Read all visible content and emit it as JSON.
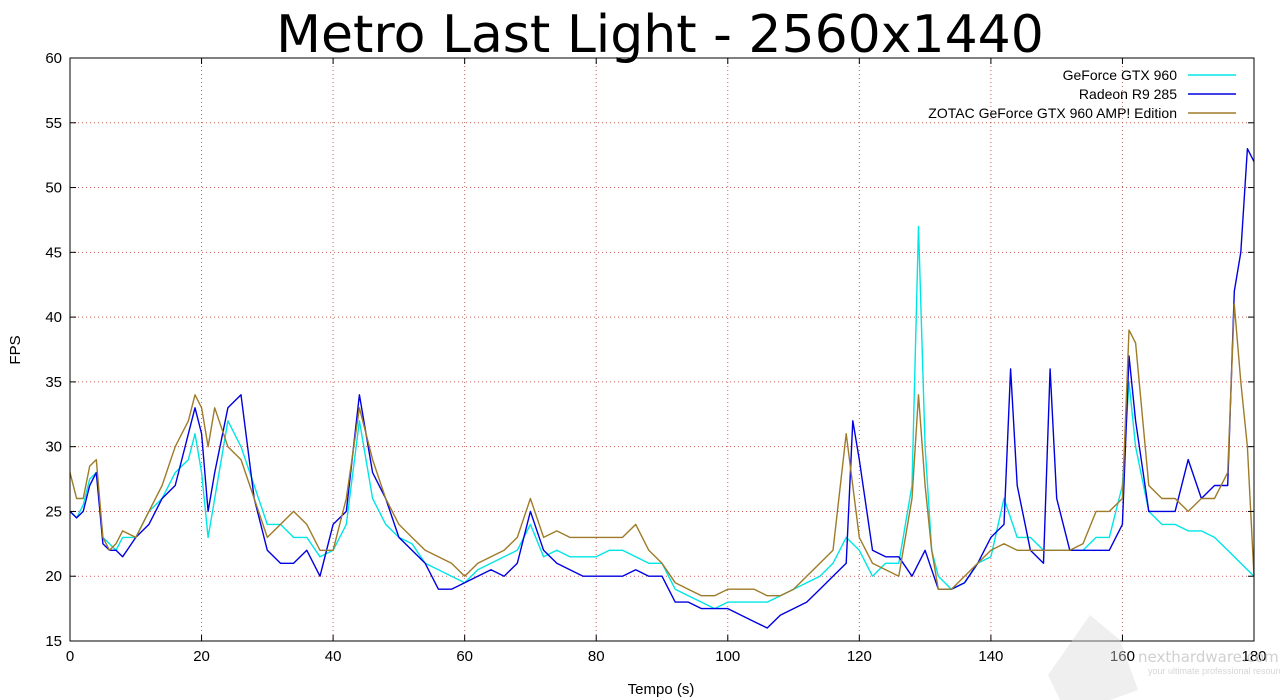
{
  "chart_data": {
    "type": "line",
    "title": "Metro Last Light - 2560x1440",
    "xlabel": "Tempo (s)",
    "ylabel": "FPS",
    "xlim": [
      0,
      180
    ],
    "ylim": [
      15,
      60
    ],
    "xticks": [
      "0",
      "20",
      "40",
      "60",
      "80",
      "100",
      "120",
      "140",
      "160",
      "180"
    ],
    "yticks": [
      "15",
      "20",
      "25",
      "30",
      "35",
      "40",
      "45",
      "50",
      "55",
      "60"
    ],
    "grid": true,
    "legend_position": "top-right",
    "series": [
      {
        "name": "GeForce GTX 960",
        "color": "#00e5e5",
        "points": [
          [
            0,
            25
          ],
          [
            1,
            24.5
          ],
          [
            2,
            25.5
          ],
          [
            3,
            27.5
          ],
          [
            4,
            28
          ],
          [
            5,
            23
          ],
          [
            6,
            22.5
          ],
          [
            7,
            22
          ],
          [
            8,
            23
          ],
          [
            10,
            23
          ],
          [
            12,
            25
          ],
          [
            14,
            26
          ],
          [
            16,
            28
          ],
          [
            18,
            29
          ],
          [
            19,
            31
          ],
          [
            20,
            28
          ],
          [
            21,
            23
          ],
          [
            22,
            26
          ],
          [
            24,
            32
          ],
          [
            26,
            30
          ],
          [
            28,
            27
          ],
          [
            30,
            24
          ],
          [
            32,
            24
          ],
          [
            34,
            23
          ],
          [
            36,
            23
          ],
          [
            38,
            21.5
          ],
          [
            40,
            22
          ],
          [
            42,
            24
          ],
          [
            44,
            32
          ],
          [
            46,
            26
          ],
          [
            48,
            24
          ],
          [
            50,
            23
          ],
          [
            52,
            22.5
          ],
          [
            54,
            21
          ],
          [
            56,
            20.5
          ],
          [
            58,
            20
          ],
          [
            60,
            19.5
          ],
          [
            62,
            20.5
          ],
          [
            64,
            21
          ],
          [
            66,
            21.5
          ],
          [
            68,
            22
          ],
          [
            70,
            24
          ],
          [
            72,
            21.5
          ],
          [
            74,
            22
          ],
          [
            76,
            21.5
          ],
          [
            78,
            21.5
          ],
          [
            80,
            21.5
          ],
          [
            82,
            22
          ],
          [
            84,
            22
          ],
          [
            86,
            21.5
          ],
          [
            88,
            21
          ],
          [
            90,
            21
          ],
          [
            92,
            19
          ],
          [
            94,
            18.5
          ],
          [
            96,
            18
          ],
          [
            98,
            17.5
          ],
          [
            100,
            18
          ],
          [
            102,
            18
          ],
          [
            104,
            18
          ],
          [
            106,
            18
          ],
          [
            108,
            18.5
          ],
          [
            110,
            19
          ],
          [
            112,
            19.5
          ],
          [
            114,
            20
          ],
          [
            116,
            21
          ],
          [
            118,
            23
          ],
          [
            120,
            22
          ],
          [
            122,
            20
          ],
          [
            124,
            21
          ],
          [
            126,
            21
          ],
          [
            128,
            27
          ],
          [
            129,
            47
          ],
          [
            130,
            30
          ],
          [
            131,
            22
          ],
          [
            132,
            20
          ],
          [
            134,
            19
          ],
          [
            136,
            19.5
          ],
          [
            138,
            21
          ],
          [
            140,
            21.5
          ],
          [
            142,
            26
          ],
          [
            144,
            23
          ],
          [
            146,
            23
          ],
          [
            148,
            22
          ],
          [
            150,
            22
          ],
          [
            152,
            22
          ],
          [
            154,
            22
          ],
          [
            156,
            23
          ],
          [
            158,
            23
          ],
          [
            160,
            27
          ],
          [
            161,
            35
          ],
          [
            162,
            30
          ],
          [
            164,
            25
          ],
          [
            166,
            24
          ],
          [
            168,
            24
          ],
          [
            170,
            23.5
          ],
          [
            172,
            23.5
          ],
          [
            174,
            23
          ],
          [
            176,
            22
          ],
          [
            178,
            21
          ],
          [
            180,
            20
          ]
        ]
      },
      {
        "name": "Radeon R9 285",
        "color": "#0000e0",
        "points": [
          [
            0,
            25
          ],
          [
            1,
            24.5
          ],
          [
            2,
            25
          ],
          [
            3,
            27
          ],
          [
            4,
            28
          ],
          [
            5,
            22.5
          ],
          [
            6,
            22
          ],
          [
            7,
            22
          ],
          [
            8,
            21.5
          ],
          [
            10,
            23
          ],
          [
            12,
            24
          ],
          [
            14,
            26
          ],
          [
            16,
            27
          ],
          [
            18,
            31
          ],
          [
            19,
            33
          ],
          [
            20,
            31
          ],
          [
            21,
            25
          ],
          [
            22,
            28
          ],
          [
            24,
            33
          ],
          [
            26,
            34
          ],
          [
            28,
            26
          ],
          [
            30,
            22
          ],
          [
            32,
            21
          ],
          [
            34,
            21
          ],
          [
            36,
            22
          ],
          [
            38,
            20
          ],
          [
            40,
            24
          ],
          [
            42,
            25
          ],
          [
            44,
            34
          ],
          [
            46,
            28
          ],
          [
            48,
            26
          ],
          [
            50,
            23
          ],
          [
            52,
            22
          ],
          [
            54,
            21
          ],
          [
            56,
            19
          ],
          [
            58,
            19
          ],
          [
            60,
            19.5
          ],
          [
            62,
            20
          ],
          [
            64,
            20.5
          ],
          [
            66,
            20
          ],
          [
            68,
            21
          ],
          [
            70,
            25
          ],
          [
            72,
            22
          ],
          [
            74,
            21
          ],
          [
            76,
            20.5
          ],
          [
            78,
            20
          ],
          [
            80,
            20
          ],
          [
            82,
            20
          ],
          [
            84,
            20
          ],
          [
            86,
            20.5
          ],
          [
            88,
            20
          ],
          [
            90,
            20
          ],
          [
            92,
            18
          ],
          [
            94,
            18
          ],
          [
            96,
            17.5
          ],
          [
            98,
            17.5
          ],
          [
            100,
            17.5
          ],
          [
            102,
            17
          ],
          [
            104,
            16.5
          ],
          [
            106,
            16
          ],
          [
            108,
            17
          ],
          [
            110,
            17.5
          ],
          [
            112,
            18
          ],
          [
            114,
            19
          ],
          [
            116,
            20
          ],
          [
            118,
            21
          ],
          [
            119,
            32
          ],
          [
            120,
            29
          ],
          [
            122,
            22
          ],
          [
            124,
            21.5
          ],
          [
            126,
            21.5
          ],
          [
            128,
            20
          ],
          [
            130,
            22
          ],
          [
            132,
            19
          ],
          [
            134,
            19
          ],
          [
            136,
            19.5
          ],
          [
            138,
            21
          ],
          [
            140,
            23
          ],
          [
            142,
            24
          ],
          [
            143,
            36
          ],
          [
            144,
            27
          ],
          [
            146,
            22
          ],
          [
            148,
            21
          ],
          [
            149,
            36
          ],
          [
            150,
            26
          ],
          [
            152,
            22
          ],
          [
            154,
            22
          ],
          [
            156,
            22
          ],
          [
            158,
            22
          ],
          [
            160,
            24
          ],
          [
            161,
            37
          ],
          [
            162,
            32
          ],
          [
            164,
            25
          ],
          [
            166,
            25
          ],
          [
            168,
            25
          ],
          [
            170,
            29
          ],
          [
            172,
            26
          ],
          [
            174,
            27
          ],
          [
            176,
            27
          ],
          [
            177,
            42
          ],
          [
            178,
            45
          ],
          [
            179,
            53
          ],
          [
            180,
            52
          ]
        ]
      },
      {
        "name": "ZOTAC GeForce GTX 960 AMP! Edition",
        "color": "#9e7b28",
        "points": [
          [
            0,
            28
          ],
          [
            1,
            26
          ],
          [
            2,
            26
          ],
          [
            3,
            28.5
          ],
          [
            4,
            29
          ],
          [
            5,
            23
          ],
          [
            6,
            22
          ],
          [
            7,
            22.5
          ],
          [
            8,
            23.5
          ],
          [
            10,
            23
          ],
          [
            12,
            25
          ],
          [
            14,
            27
          ],
          [
            16,
            30
          ],
          [
            18,
            32
          ],
          [
            19,
            34
          ],
          [
            20,
            33
          ],
          [
            21,
            30
          ],
          [
            22,
            33
          ],
          [
            24,
            30
          ],
          [
            26,
            29
          ],
          [
            28,
            26
          ],
          [
            30,
            23
          ],
          [
            32,
            24
          ],
          [
            34,
            25
          ],
          [
            36,
            24
          ],
          [
            38,
            22
          ],
          [
            40,
            22
          ],
          [
            42,
            26
          ],
          [
            44,
            33
          ],
          [
            46,
            29
          ],
          [
            48,
            26
          ],
          [
            50,
            24
          ],
          [
            52,
            23
          ],
          [
            54,
            22
          ],
          [
            56,
            21.5
          ],
          [
            58,
            21
          ],
          [
            60,
            20
          ],
          [
            62,
            21
          ],
          [
            64,
            21.5
          ],
          [
            66,
            22
          ],
          [
            68,
            23
          ],
          [
            70,
            26
          ],
          [
            72,
            23
          ],
          [
            74,
            23.5
          ],
          [
            76,
            23
          ],
          [
            78,
            23
          ],
          [
            80,
            23
          ],
          [
            82,
            23
          ],
          [
            84,
            23
          ],
          [
            86,
            24
          ],
          [
            88,
            22
          ],
          [
            90,
            21
          ],
          [
            92,
            19.5
          ],
          [
            94,
            19
          ],
          [
            96,
            18.5
          ],
          [
            98,
            18.5
          ],
          [
            100,
            19
          ],
          [
            102,
            19
          ],
          [
            104,
            19
          ],
          [
            106,
            18.5
          ],
          [
            108,
            18.5
          ],
          [
            110,
            19
          ],
          [
            112,
            20
          ],
          [
            114,
            21
          ],
          [
            116,
            22
          ],
          [
            118,
            31
          ],
          [
            120,
            23
          ],
          [
            122,
            21
          ],
          [
            124,
            20.5
          ],
          [
            126,
            20
          ],
          [
            128,
            26
          ],
          [
            129,
            34
          ],
          [
            130,
            27
          ],
          [
            131,
            22
          ],
          [
            132,
            19
          ],
          [
            134,
            19
          ],
          [
            136,
            20
          ],
          [
            138,
            21
          ],
          [
            140,
            22
          ],
          [
            142,
            22.5
          ],
          [
            144,
            22
          ],
          [
            146,
            22
          ],
          [
            148,
            22
          ],
          [
            150,
            22
          ],
          [
            152,
            22
          ],
          [
            154,
            22.5
          ],
          [
            156,
            25
          ],
          [
            158,
            25
          ],
          [
            160,
            26
          ],
          [
            161,
            39
          ],
          [
            162,
            38
          ],
          [
            164,
            27
          ],
          [
            166,
            26
          ],
          [
            168,
            26
          ],
          [
            170,
            25
          ],
          [
            172,
            26
          ],
          [
            174,
            26
          ],
          [
            176,
            28
          ],
          [
            177,
            41
          ],
          [
            178,
            35
          ],
          [
            179,
            30
          ],
          [
            180,
            20
          ]
        ]
      }
    ]
  },
  "watermark": {
    "brand_text": "nexthardware.com",
    "tagline": "your ultimate professional resource"
  }
}
